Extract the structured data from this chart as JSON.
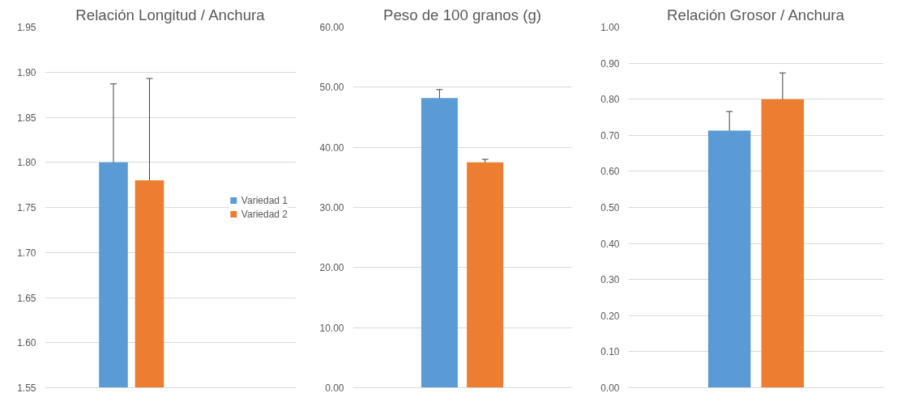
{
  "chart_data": [
    {
      "type": "bar",
      "title": "Relación Longitud / Anchura",
      "categories": [
        null
      ],
      "series": [
        {
          "name": "Variedad 1",
          "color": "#5b9bd5",
          "values": [
            1.8
          ],
          "errors": [
            0.087
          ]
        },
        {
          "name": "Variedad 2",
          "color": "#ed7d31",
          "values": [
            1.78
          ],
          "errors": [
            0.113
          ]
        }
      ],
      "ylim": [
        1.55,
        1.95
      ],
      "yticks": [
        1.55,
        {
          "value": 1.6,
          "label": "1.60"
        },
        1.65,
        {
          "value": 1.7,
          "label": "1.70"
        },
        1.75,
        {
          "value": 1.8,
          "label": "1.80"
        },
        1.85,
        {
          "value": 1.9,
          "label": "1.90"
        },
        1.95
      ],
      "grid": "y",
      "legend": "right"
    },
    {
      "type": "bar",
      "title": "Peso de 100 granos (g)",
      "categories": [
        null
      ],
      "series": [
        {
          "color": "#5b9bd5",
          "values": [
            48.2
          ],
          "errors": [
            1.4
          ]
        },
        {
          "color": "#ed7d31",
          "values": [
            37.5
          ],
          "errors": [
            0.5
          ]
        }
      ],
      "ylim": [
        0,
        60
      ],
      "yticks": [
        {
          "value": 0,
          "label": "0.00"
        },
        {
          "value": 10,
          "label": "10.00"
        },
        {
          "value": 20,
          "label": "20.00"
        },
        {
          "value": 30,
          "label": "30.00"
        },
        {
          "value": 40,
          "label": "40.00"
        },
        {
          "value": 50,
          "label": "50.00"
        },
        {
          "value": 60,
          "label": "60.00"
        }
      ],
      "grid": "y"
    },
    {
      "type": "bar",
      "title": "Relación Grosor / Anchura",
      "categories": [
        null
      ],
      "series": [
        {
          "color": "#5b9bd5",
          "values": [
            0.713
          ],
          "errors": [
            0.053
          ]
        },
        {
          "color": "#ed7d31",
          "values": [
            0.8
          ],
          "errors": [
            0.073
          ]
        }
      ],
      "ylim": [
        0,
        1
      ],
      "yticks": [
        {
          "value": 0,
          "label": "0.00"
        },
        {
          "value": 0.1,
          "label": "0.10"
        },
        {
          "value": 0.2,
          "label": "0.20"
        },
        {
          "value": 0.3,
          "label": "0.30"
        },
        {
          "value": 0.4,
          "label": "0.40"
        },
        {
          "value": 0.5,
          "label": "0.50"
        },
        {
          "value": 0.6,
          "label": "0.60"
        },
        {
          "value": 0.7,
          "label": "0.70"
        },
        {
          "value": 0.8,
          "label": "0.80"
        },
        {
          "value": 0.9,
          "label": "0.90"
        },
        {
          "value": 1,
          "label": "1.00"
        }
      ],
      "grid": "y"
    }
  ]
}
